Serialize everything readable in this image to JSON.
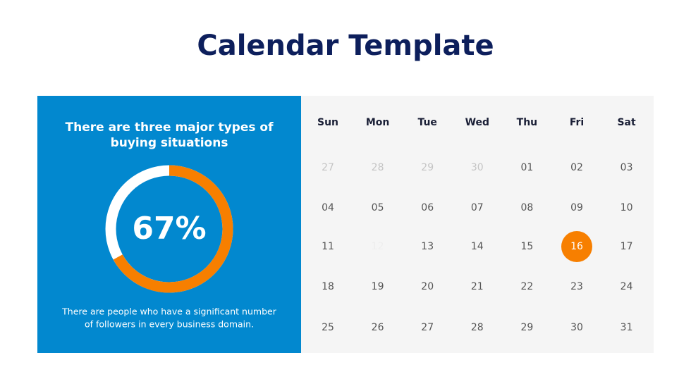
{
  "title": "Calendar Template",
  "panel": {
    "heading": [
      "There are three major types of",
      "buying situations"
    ],
    "donut": {
      "value": 67,
      "value_label": "67%",
      "color": "#f77f00",
      "rest_color": "#ffffff"
    },
    "description": [
      "There are people who have a significant number",
      "of followers in every business domain."
    ]
  },
  "calendar": {
    "weekdays": [
      "Sun",
      "Mon",
      "Tue",
      "Wed",
      "Thu",
      "Fri",
      "Sat"
    ],
    "weeks": [
      [
        "27",
        "28",
        "29",
        "30",
        "01",
        "02",
        "03"
      ],
      [
        "04",
        "05",
        "06",
        "07",
        "08",
        "09",
        "10"
      ],
      [
        "11",
        "12",
        "13",
        "14",
        "15",
        "16",
        "17"
      ],
      [
        "18",
        "19",
        "20",
        "21",
        "22",
        "23",
        "24"
      ],
      [
        "25",
        "26",
        "27",
        "28",
        "29",
        "30",
        "31"
      ]
    ],
    "highlight_color": "#f77f00"
  }
}
